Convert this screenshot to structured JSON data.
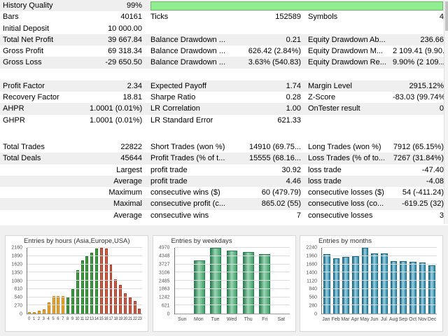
{
  "ui_colors": {
    "row_stripe": "#efefef",
    "progress_fill": "#90EE90",
    "progress_border": "#74b274",
    "charts_background": "#f0f0f0"
  },
  "progress": {
    "label": "History Quality",
    "value": "99%"
  },
  "table": {
    "blocks": [
      {
        "rows": [
          {
            "shaded": true,
            "progress": true,
            "cells": [
              "History Quality",
              "99%",
              "",
              "",
              "",
              ""
            ]
          },
          {
            "shaded": false,
            "cells": [
              "Bars",
              "40161",
              "Ticks",
              "152589",
              "Symbols",
              "4"
            ]
          },
          {
            "shaded": false,
            "cells": [
              "Initial Deposit",
              "10 000.00",
              "",
              "",
              "",
              ""
            ]
          },
          {
            "shaded": true,
            "cells": [
              "Total Net Profit",
              "39 667.84",
              "Balance Drawdown ...",
              "0.21",
              "Equity Drawdown Ab...",
              "236.66"
            ]
          },
          {
            "shaded": false,
            "cells": [
              "Gross Profit",
              "69 318.34",
              "Balance Drawdown ...",
              "626.42 (2.84%)",
              "Equity Drawdown M...",
              "2 109.41 (9.90..."
            ]
          },
          {
            "shaded": true,
            "cells": [
              "Gross Loss",
              "-29 650.50",
              "Balance Drawdown ...",
              "3.63% (540.83)",
              "Equity Drawdown Re...",
              "9.90% (2 109...."
            ]
          }
        ]
      },
      {
        "rows": [
          {
            "shaded": true,
            "cells": [
              "Profit Factor",
              "2.34",
              "Expected Payoff",
              "1.74",
              "Margin Level",
              "2915.12%"
            ]
          },
          {
            "shaded": false,
            "cells": [
              "Recovery Factor",
              "18.81",
              "Sharpe Ratio",
              "0.28",
              "Z-Score",
              "-83.03 (99.74%)"
            ]
          },
          {
            "shaded": true,
            "cells": [
              "AHPR",
              "1.0001 (0.01%)",
              "LR Correlation",
              "1.00",
              "OnTester result",
              "0"
            ]
          },
          {
            "shaded": false,
            "cells": [
              "GHPR",
              "1.0001 (0.01%)",
              "LR Standard Error",
              "621.33",
              "",
              ""
            ]
          }
        ]
      },
      {
        "rows": [
          {
            "shaded": false,
            "cells": [
              "Total Trades",
              "22822",
              "Short Trades (won %)",
              "14910 (69.75...",
              "Long Trades (won %)",
              "7912 (65.15%)"
            ]
          },
          {
            "shaded": true,
            "cells": [
              "Total Deals",
              "45644",
              "Profit Trades (% of t...",
              "15555 (68.16...",
              "Loss Trades (% of to...",
              "7267 (31.84%)"
            ]
          },
          {
            "shaded": false,
            "cells": [
              "",
              "Largest",
              "profit trade",
              "30.92",
              "loss trade",
              "-47.40"
            ]
          },
          {
            "shaded": true,
            "cells": [
              "",
              "Average",
              "profit trade",
              "4.46",
              "loss trade",
              "-4.08"
            ]
          },
          {
            "shaded": false,
            "cells": [
              "",
              "Maximum",
              "consecutive wins ($)",
              "60 (479.79)",
              "consecutive losses ($)",
              "54 (-411.24)"
            ]
          },
          {
            "shaded": true,
            "cells": [
              "",
              "Maximal",
              "consecutive profit (c...",
              "865.02 (55)",
              "consecutive loss (co...",
              "-619.25 (32)"
            ]
          },
          {
            "shaded": false,
            "cells": [
              "",
              "Average",
              "consecutive wins",
              "7",
              "consecutive losses",
              "3"
            ]
          }
        ]
      }
    ]
  },
  "chart_data": [
    {
      "type": "bar",
      "title": "Entries by hours (Asia,Europe,USA)",
      "categories": [
        "0",
        "1",
        "2",
        "3",
        "4",
        "5",
        "6",
        "7",
        "8",
        "9",
        "10",
        "11",
        "12",
        "13",
        "14",
        "15",
        "16",
        "17",
        "18",
        "19",
        "20",
        "21",
        "22",
        "23"
      ],
      "values": [
        55,
        55,
        90,
        145,
        370,
        585,
        585,
        570,
        560,
        810,
        1430,
        1755,
        1890,
        2005,
        2140,
        2160,
        2145,
        1600,
        1130,
        950,
        675,
        540,
        410,
        170
      ],
      "yticks": [
        0,
        270,
        540,
        810,
        1080,
        1350,
        1620,
        1890,
        2160
      ],
      "ylim": [
        0,
        2160
      ],
      "xlabel": "",
      "ylabel": "",
      "grid": true,
      "legend": "none",
      "segments": [
        {
          "range": [
            0,
            7
          ],
          "fill": "#F0A832",
          "border": "#BC7D0C"
        },
        {
          "range": [
            8,
            14
          ],
          "fill": "#3F9B41",
          "border": "#27782A"
        },
        {
          "range": [
            15,
            23
          ],
          "fill": "#C75F48",
          "border": "#A93A26"
        }
      ]
    },
    {
      "type": "bar",
      "title": "Entries by weekdays",
      "categories": [
        "Sun",
        "Mon",
        "Tue",
        "Wed",
        "Thu",
        "Fri",
        "Sat"
      ],
      "values": [
        0,
        4000,
        4970,
        4750,
        4650,
        4520,
        0
      ],
      "yticks": [
        0,
        621,
        1242,
        1863,
        2485,
        3106,
        3727,
        4348,
        4970
      ],
      "ylim": [
        0,
        4970
      ],
      "xlabel": "",
      "ylabel": "",
      "grid": true,
      "legend": "none",
      "style": {
        "fill": "#3E9E68",
        "fill2": "#9BD6B4",
        "border": "#2E7D54"
      }
    },
    {
      "type": "bar",
      "title": "Entries by months",
      "categories": [
        "Jan",
        "Feb",
        "Mar",
        "Apr",
        "May",
        "Jun",
        "Jul",
        "Aug",
        "Sep",
        "Oct",
        "Nov",
        "Dec"
      ],
      "values": [
        2020,
        1890,
        1930,
        1960,
        2240,
        2040,
        2050,
        1790,
        1790,
        1770,
        1730,
        1640
      ],
      "yticks": [
        0,
        280,
        560,
        840,
        1120,
        1400,
        1680,
        1960,
        2240
      ],
      "ylim": [
        0,
        2240
      ],
      "xlabel": "",
      "ylabel": "",
      "grid": true,
      "legend": "none",
      "style": {
        "fill": "#2F87A6",
        "fill2": "#9BD2E4",
        "border": "#1F6A85"
      }
    }
  ]
}
